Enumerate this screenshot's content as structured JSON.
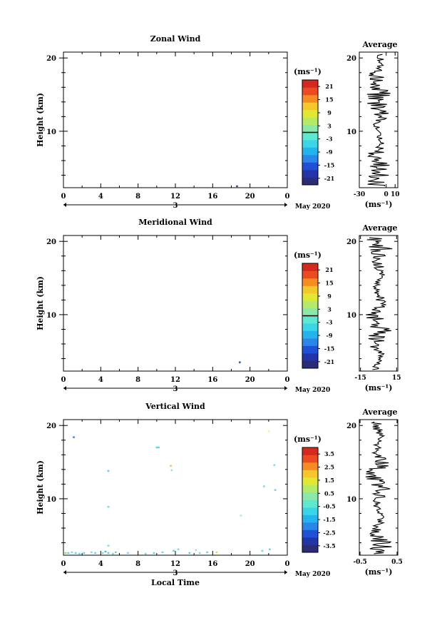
{
  "chart_data": [
    {
      "type": "heatmap",
      "title": "Zonal Wind",
      "ylabel": "Height (km)",
      "xlabel": "",
      "x_ticks": [
        "0",
        "4",
        "8",
        "12",
        "16",
        "20",
        "0"
      ],
      "xlim": [
        0,
        24
      ],
      "y_ticks": [
        "10",
        "20"
      ],
      "ylim": [
        2.3,
        20.8
      ],
      "date_day": "3",
      "date_month": "May 2020",
      "colorbar": {
        "unit": "(ms⁻¹)",
        "ticks": [
          "21",
          "15",
          "9",
          "3",
          "-3",
          "-9",
          "-15",
          "-21"
        ],
        "range": [
          -24,
          24
        ],
        "zero_line": 0
      },
      "cells": [
        {
          "t": 18.6,
          "h": 2.5,
          "color": "#1f46c8"
        }
      ],
      "average": {
        "title": "Average",
        "xlabel": "(ms⁻¹)",
        "x_ticks": [
          "-30",
          "0",
          "10"
        ],
        "xlim": [
          -30,
          13
        ],
        "y_ticks": [
          "10",
          "20"
        ]
      }
    },
    {
      "type": "heatmap",
      "title": "Meridional Wind",
      "ylabel": "Height (km)",
      "xlabel": "",
      "x_ticks": [
        "0",
        "4",
        "8",
        "12",
        "16",
        "20",
        "0"
      ],
      "xlim": [
        0,
        24
      ],
      "y_ticks": [
        "10",
        "20"
      ],
      "ylim": [
        2.3,
        20.8
      ],
      "date_day": "3",
      "date_month": "May 2020",
      "colorbar": {
        "unit": "(ms⁻¹)",
        "ticks": [
          "21",
          "15",
          "9",
          "3",
          "-3",
          "-9",
          "-15",
          "-21"
        ],
        "range": [
          -24,
          24
        ],
        "zero_line": 0
      },
      "cells": [
        {
          "t": 18.9,
          "h": 3.5,
          "color": "#1f46c8"
        }
      ],
      "average": {
        "title": "Average",
        "xlabel": "(ms⁻¹)",
        "x_ticks": [
          "-15",
          "15"
        ],
        "xlim": [
          -16,
          16
        ],
        "y_ticks": [
          "10",
          "20"
        ]
      }
    },
    {
      "type": "heatmap",
      "title": "Vertical Wind",
      "ylabel": "Height (km)",
      "xlabel": "Local Time",
      "x_ticks": [
        "0",
        "4",
        "8",
        "12",
        "16",
        "20",
        "0"
      ],
      "xlim": [
        0,
        24
      ],
      "y_ticks": [
        "10",
        "20"
      ],
      "ylim": [
        2.3,
        20.8
      ],
      "date_day": "3",
      "date_month": "May 2020",
      "colorbar": {
        "unit": "(ms⁻¹)",
        "ticks": [
          "3.5",
          "2.5",
          "1.5",
          "0.5",
          "-0.5",
          "-1.5",
          "-2.5",
          "-3.5"
        ],
        "range": [
          -4,
          4
        ],
        "zero_line": null
      },
      "cells": [
        {
          "t": 1.1,
          "h": 18.4,
          "color": "#3a7be0"
        },
        {
          "t": 10.0,
          "h": 17.0,
          "color": "#4fd6f0"
        },
        {
          "t": 10.2,
          "h": 17.0,
          "color": "#4fd6f0"
        },
        {
          "t": 11.5,
          "h": 14.5,
          "color": "#f2c04a"
        },
        {
          "t": 11.6,
          "h": 13.9,
          "color": "#9fe0d0"
        },
        {
          "t": 4.8,
          "h": 13.8,
          "color": "#5ad2e8"
        },
        {
          "t": 22.6,
          "h": 14.6,
          "color": "#66e0f0"
        },
        {
          "t": 22.0,
          "h": 19.2,
          "color": "#f0f090"
        },
        {
          "t": 21.5,
          "h": 11.7,
          "color": "#66e0f0"
        },
        {
          "t": 22.7,
          "h": 11.2,
          "color": "#5ad2e8"
        },
        {
          "t": 4.8,
          "h": 8.9,
          "color": "#66e0f0"
        },
        {
          "t": 19.0,
          "h": 7.7,
          "color": "#a8eec0"
        },
        {
          "t": 4.8,
          "h": 3.6,
          "color": "#66e0f0"
        },
        {
          "t": 0.2,
          "h": 2.6,
          "color": "#7be86a"
        },
        {
          "t": 0.5,
          "h": 2.6,
          "color": "#5ad2e8"
        },
        {
          "t": 0.9,
          "h": 2.7,
          "color": "#66e0f0"
        },
        {
          "t": 1.3,
          "h": 2.6,
          "color": "#5ad2e8"
        },
        {
          "t": 1.7,
          "h": 2.5,
          "color": "#66e0f0"
        },
        {
          "t": 2.2,
          "h": 2.6,
          "color": "#5ad2e8"
        },
        {
          "t": 3.0,
          "h": 2.7,
          "color": "#66e0f0"
        },
        {
          "t": 3.4,
          "h": 2.6,
          "color": "#5ad2e8"
        },
        {
          "t": 4.2,
          "h": 2.6,
          "color": "#66e0f0"
        },
        {
          "t": 4.5,
          "h": 2.8,
          "color": "#3fb8e8"
        },
        {
          "t": 4.8,
          "h": 2.6,
          "color": "#5ad2e8"
        },
        {
          "t": 5.3,
          "h": 2.5,
          "color": "#66e0f0"
        },
        {
          "t": 5.6,
          "h": 2.7,
          "color": "#5ad2e8"
        },
        {
          "t": 6.9,
          "h": 2.6,
          "color": "#66e0f0"
        },
        {
          "t": 8.8,
          "h": 2.5,
          "color": "#66e0f0"
        },
        {
          "t": 9.7,
          "h": 2.6,
          "color": "#5ad2e8"
        },
        {
          "t": 10.6,
          "h": 2.7,
          "color": "#66e0f0"
        },
        {
          "t": 11.8,
          "h": 2.9,
          "color": "#5ad2e8"
        },
        {
          "t": 12.3,
          "h": 3.1,
          "color": "#66e0f0"
        },
        {
          "t": 13.5,
          "h": 2.6,
          "color": "#5ad2e8"
        },
        {
          "t": 14.2,
          "h": 3.0,
          "color": "#9fe0d0"
        },
        {
          "t": 14.6,
          "h": 2.6,
          "color": "#66e0f0"
        },
        {
          "t": 15.4,
          "h": 2.7,
          "color": "#5ad2e8"
        },
        {
          "t": 16.4,
          "h": 2.7,
          "color": "#c8e850"
        },
        {
          "t": 21.3,
          "h": 2.9,
          "color": "#66e0f0"
        },
        {
          "t": 22.1,
          "h": 3.1,
          "color": "#5ad2e8"
        }
      ],
      "average": {
        "title": "Average",
        "xlabel": "(ms⁻¹)",
        "x_ticks": [
          "-0.5",
          "0.5"
        ],
        "xlim": [
          -0.52,
          0.52
        ],
        "y_ticks": [
          "10",
          "20"
        ]
      }
    }
  ],
  "colormap": [
    "#2b2c77",
    "#2334a8",
    "#2050d8",
    "#2a86e8",
    "#23b4ee",
    "#3ad6e8",
    "#5ee8d0",
    "#8ae8a8",
    "#b4ea6a",
    "#e2e832",
    "#f4c72a",
    "#f48c22",
    "#ec4a20",
    "#d42a1e"
  ]
}
